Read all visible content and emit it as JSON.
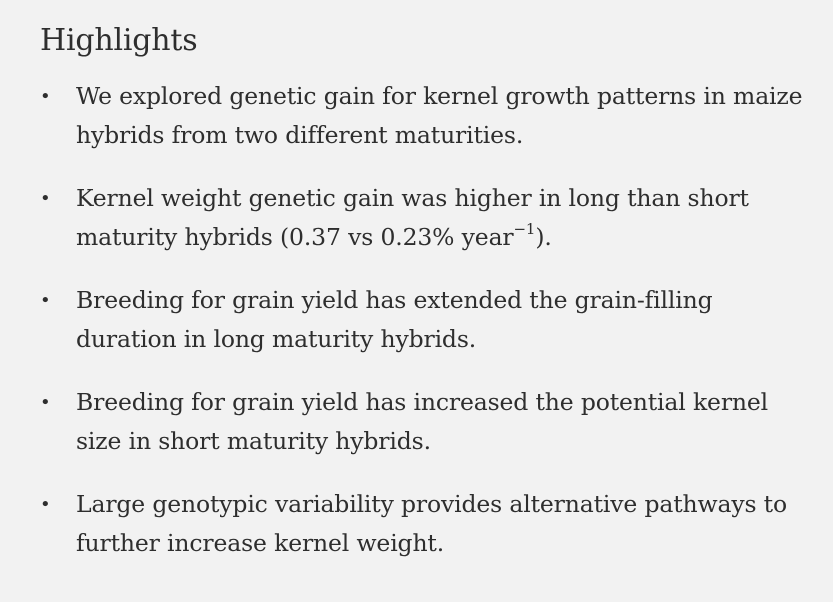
{
  "section": {
    "title": "Highlights"
  },
  "bullet_symbol": "•",
  "items": [
    {
      "text": "We explored genetic gain for kernel growth patterns in maize hybrids from two different maturities."
    },
    {
      "text_before": "Kernel weight genetic gain was higher in long than short maturity hybrids (0.37 vs 0.23% year",
      "sup": "−1",
      "text_after": ")."
    },
    {
      "text": "Breeding for grain yield has extended the grain-filling duration in long maturity hybrids."
    },
    {
      "text": "Breeding for grain yield has increased the potential kernel size in short maturity hybrids."
    },
    {
      "text": "Large genotypic variability provides alternative pathways to further increase kernel weight."
    }
  ]
}
